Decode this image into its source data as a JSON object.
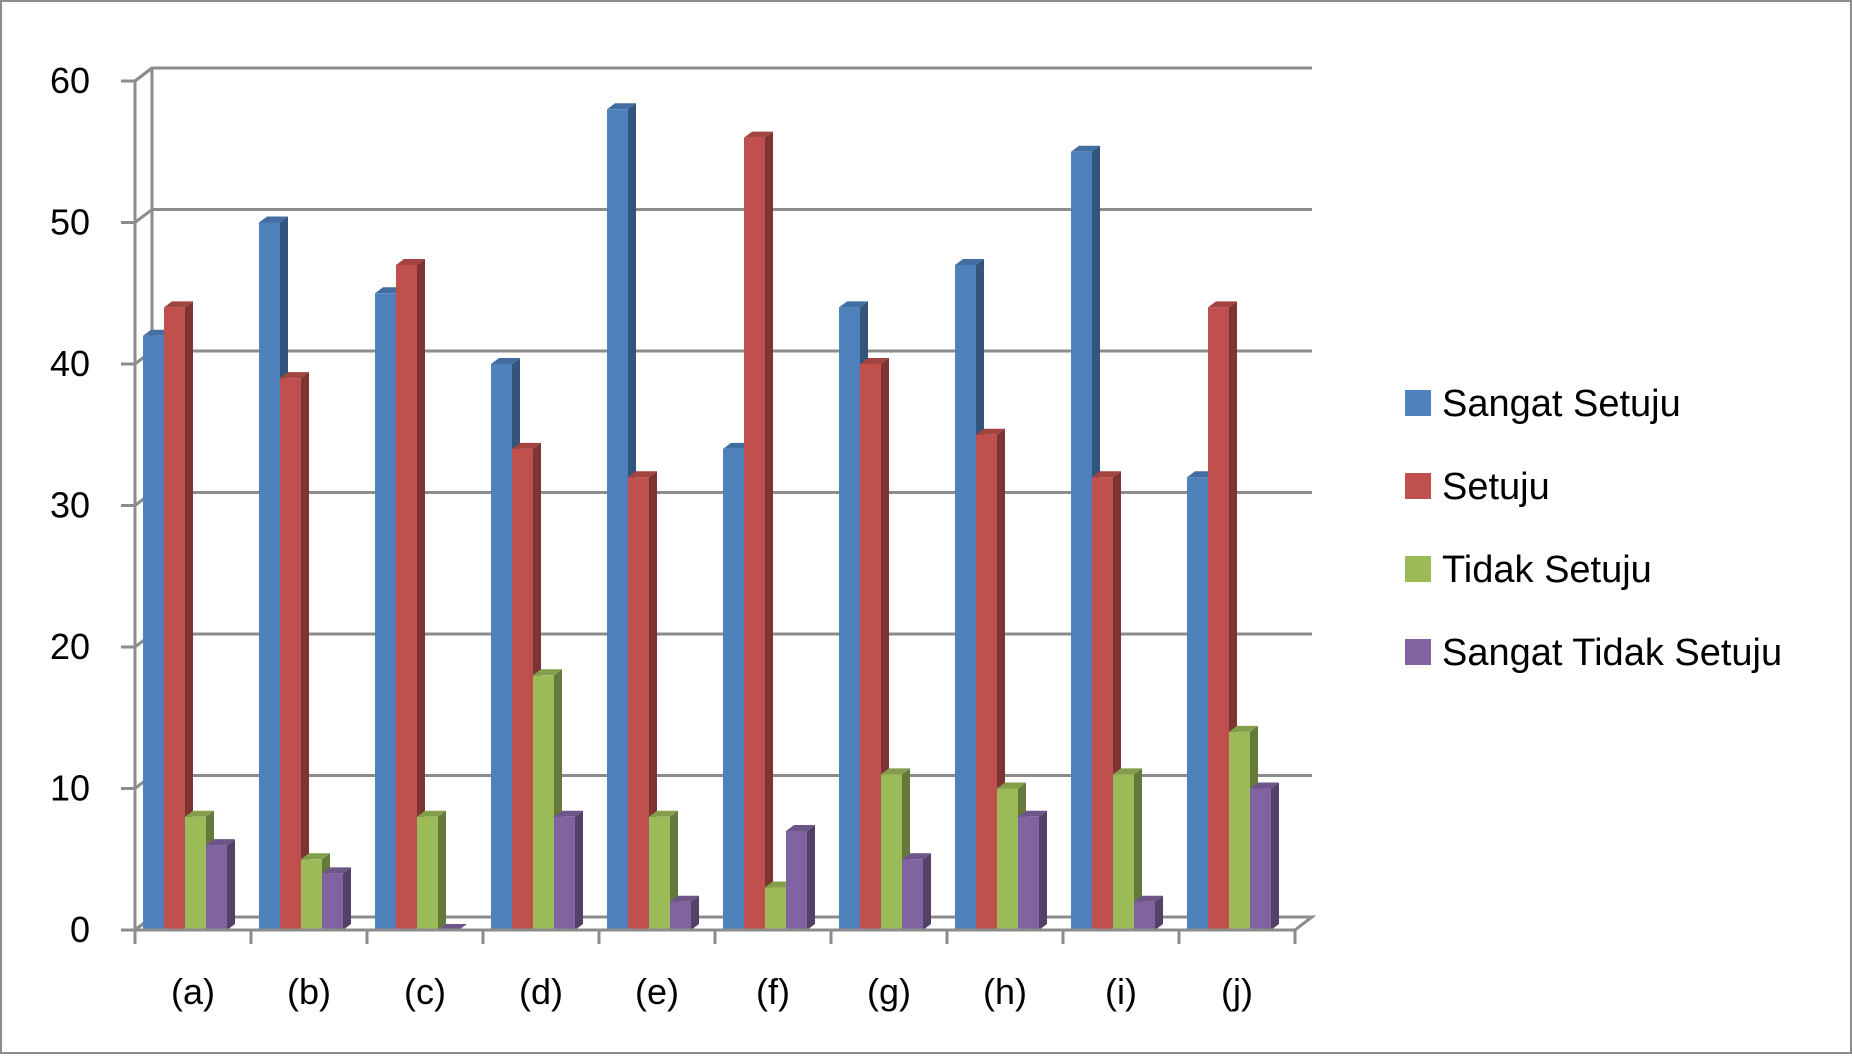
{
  "chart_data": {
    "type": "bar",
    "title": "",
    "xlabel": "",
    "ylabel": "",
    "ylim": [
      0,
      60
    ],
    "yticks": [
      0,
      10,
      20,
      30,
      40,
      50,
      60
    ],
    "grid": true,
    "style": "3d-clustered-column",
    "legend_position": "right",
    "categories": [
      "(a)",
      "(b)",
      "(c)",
      "(d)",
      "(e)",
      "(f)",
      "(g)",
      "(h)",
      "(i)",
      "(j)"
    ],
    "series": [
      {
        "name": "Sangat Setuju",
        "color": "#4f81bd",
        "values": [
          42,
          50,
          45,
          40,
          58,
          34,
          44,
          47,
          55,
          32
        ]
      },
      {
        "name": "Setuju",
        "color": "#c0504d",
        "values": [
          44,
          39,
          47,
          34,
          32,
          56,
          40,
          35,
          32,
          44
        ]
      },
      {
        "name": "Tidak Setuju",
        "color": "#9bbb59",
        "values": [
          8,
          5,
          8,
          18,
          8,
          3,
          11,
          10,
          11,
          14
        ]
      },
      {
        "name": "Sangat Tidak Setuju",
        "color": "#8064a2",
        "values": [
          6,
          4,
          0,
          8,
          2,
          7,
          5,
          8,
          2,
          10
        ]
      }
    ]
  }
}
